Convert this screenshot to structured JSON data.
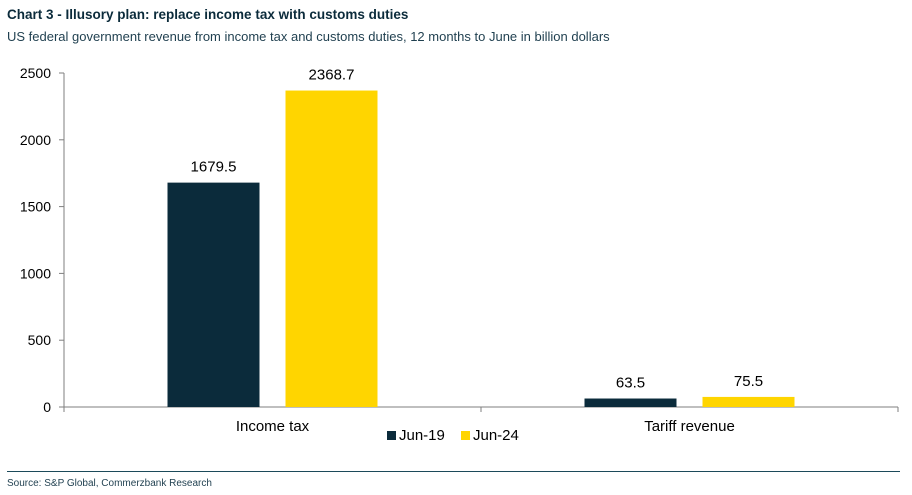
{
  "header": {
    "title": "Chart 3 - Illusory plan: replace income tax with customs duties",
    "subtitle": "US federal government revenue from income tax and customs duties, 12 months to June in billion dollars"
  },
  "footer": {
    "source": "Source: S&P Global, Commerzbank Research"
  },
  "chart_data": {
    "type": "bar",
    "categories": [
      "Income tax",
      "Tariff revenue"
    ],
    "series": [
      {
        "name": "Jun-19",
        "values": [
          1679.5,
          63.5
        ],
        "color": "#0b2b3b"
      },
      {
        "name": "Jun-24",
        "values": [
          2368.7,
          75.5
        ],
        "color": "#ffd500"
      }
    ],
    "data_labels": [
      [
        "1679.5",
        "63.5"
      ],
      [
        "2368.7",
        "75.5"
      ]
    ],
    "ylim": [
      0,
      2500
    ],
    "yticks": [
      0,
      500,
      1000,
      1500,
      2000,
      2500
    ],
    "grid": false,
    "legend_position": "bottom"
  }
}
